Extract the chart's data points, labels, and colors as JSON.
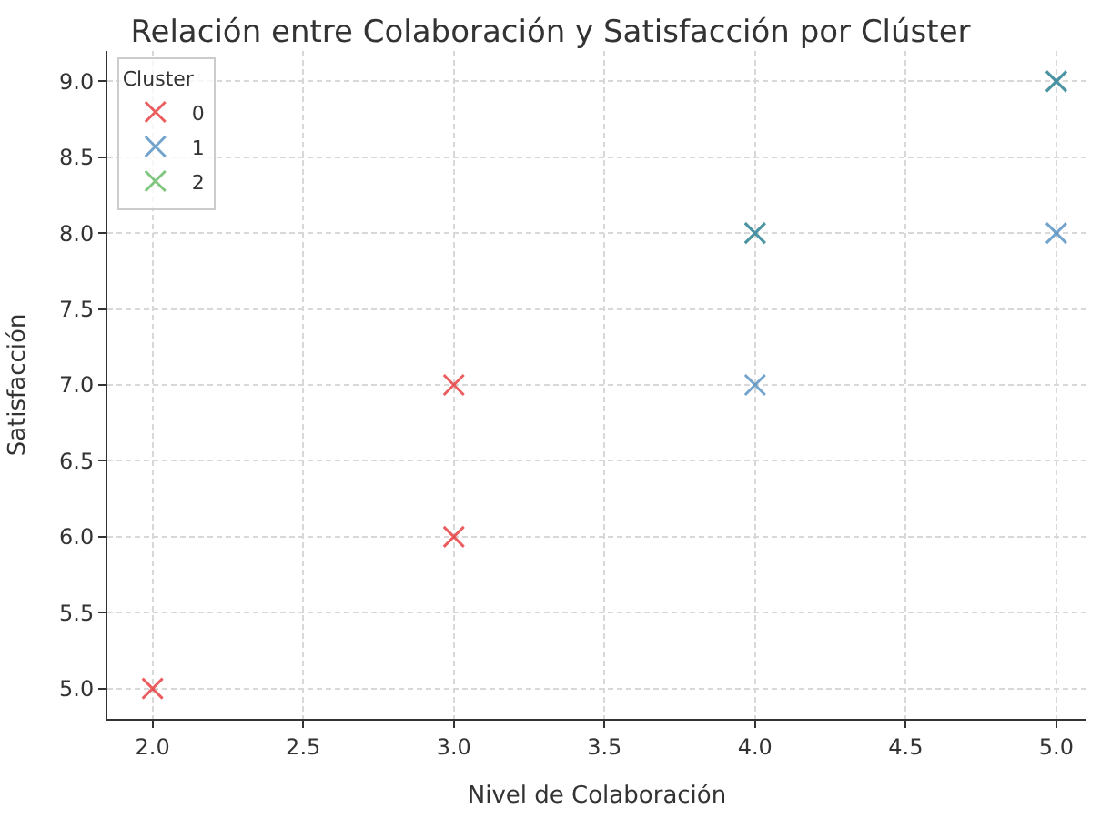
{
  "chart_data": {
    "type": "scatter",
    "title": "Relación entre Colaboración y Satisfacción por Clúster",
    "xlabel": "Nivel de Colaboración",
    "ylabel": "Satisfacción",
    "legend_title": "Cluster",
    "legend": "top left",
    "grid": true,
    "marker": "cross",
    "xlim": [
      1.85,
      5.1
    ],
    "xticks": [
      {
        "value": 2,
        "label": "2.0"
      },
      {
        "value": 2.5,
        "label": "2.5"
      },
      {
        "value": 3,
        "label": "3.0"
      },
      {
        "value": 3.5,
        "label": "3.5"
      },
      {
        "value": 4,
        "label": "4.0"
      },
      {
        "value": 4.5,
        "label": "4.5"
      },
      {
        "value": 5,
        "label": "5.0"
      }
    ],
    "ylim": [
      4.8,
      9.2
    ],
    "yticks": [
      {
        "value": 5,
        "label": "5.0"
      },
      {
        "value": 5.5,
        "label": "5.5"
      },
      {
        "value": 6,
        "label": "6.0"
      },
      {
        "value": 6.5,
        "label": "6.5"
      },
      {
        "value": 7,
        "label": "7.0"
      },
      {
        "value": 7.5,
        "label": "7.5"
      },
      {
        "value": 8,
        "label": "8.0"
      },
      {
        "value": 8.5,
        "label": "8.5"
      },
      {
        "value": 9,
        "label": "9.0"
      }
    ],
    "series": [
      {
        "name": "0",
        "color": "#e41a1c",
        "x": [
          2,
          3,
          3
        ],
        "values": [
          5,
          6,
          7
        ]
      },
      {
        "name": "1",
        "color": "#377eb8",
        "x": [
          4,
          4,
          5,
          5
        ],
        "values": [
          7,
          8,
          8,
          9
        ]
      },
      {
        "name": "2",
        "color": "#4daf4a",
        "x": [
          4,
          5
        ],
        "values": [
          8,
          9
        ]
      }
    ]
  }
}
